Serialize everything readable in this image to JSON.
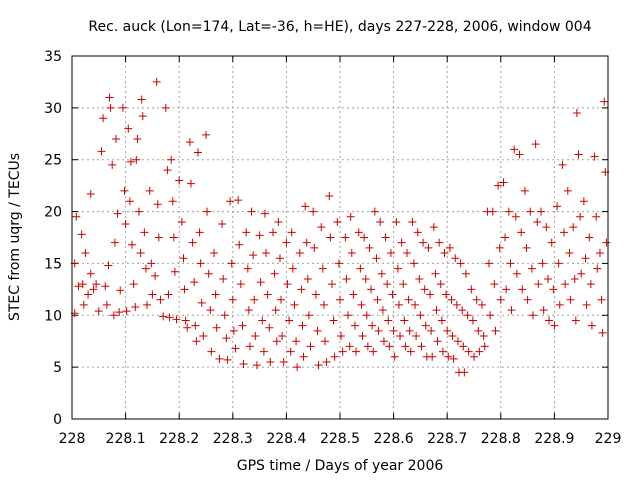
{
  "chart_data": {
    "type": "scatter",
    "title": "Rec. auck (Lon=174, Lat=-36, h=HE), days 227-228, 2006, window 004",
    "xlabel": "GPS time / Days of year 2006",
    "ylabel": "STEC from uqrg / TECUs",
    "xlim": [
      228,
      229
    ],
    "ylim": [
      0,
      35
    ],
    "xticks": [
      "228",
      "228.1",
      "228.2",
      "228.3",
      "228.4",
      "228.5",
      "228.6",
      "228.7",
      "228.8",
      "228.9",
      "229"
    ],
    "yticks": [
      "0",
      "5",
      "10",
      "15",
      "20",
      "25",
      "30",
      "35"
    ],
    "grid": true,
    "marker": "+",
    "color": "#cc0000",
    "points": [
      [
        228.005,
        15.0
      ],
      [
        228.005,
        10.2
      ],
      [
        228.008,
        19.5
      ],
      [
        228.012,
        12.8
      ],
      [
        228.018,
        17.8
      ],
      [
        228.02,
        13.0
      ],
      [
        228.022,
        11.0
      ],
      [
        228.025,
        16.0
      ],
      [
        228.03,
        12.0
      ],
      [
        228.035,
        21.7
      ],
      [
        228.035,
        14.0
      ],
      [
        228.04,
        12.5
      ],
      [
        228.045,
        13.0
      ],
      [
        228.05,
        10.4
      ],
      [
        228.055,
        25.8
      ],
      [
        228.058,
        29.0
      ],
      [
        228.062,
        12.8
      ],
      [
        228.065,
        11.0
      ],
      [
        228.068,
        14.8
      ],
      [
        228.07,
        31.0
      ],
      [
        228.072,
        30.0
      ],
      [
        228.075,
        24.5
      ],
      [
        228.078,
        10.0
      ],
      [
        228.08,
        17.0
      ],
      [
        228.082,
        27.0
      ],
      [
        228.085,
        19.8
      ],
      [
        228.088,
        10.3
      ],
      [
        228.09,
        12.4
      ],
      [
        228.095,
        30.0
      ],
      [
        228.098,
        22.0
      ],
      [
        228.1,
        18.8
      ],
      [
        228.102,
        10.4
      ],
      [
        228.105,
        28.0
      ],
      [
        228.108,
        21.0
      ],
      [
        228.11,
        24.8
      ],
      [
        228.112,
        16.8
      ],
      [
        228.115,
        13.0
      ],
      [
        228.118,
        10.8
      ],
      [
        228.12,
        25.0
      ],
      [
        228.122,
        27.0
      ],
      [
        228.125,
        20.0
      ],
      [
        228.128,
        16.0
      ],
      [
        228.13,
        30.8
      ],
      [
        228.132,
        29.2
      ],
      [
        228.135,
        18.0
      ],
      [
        228.138,
        14.5
      ],
      [
        228.14,
        11.0
      ],
      [
        228.145,
        22.0
      ],
      [
        228.148,
        15.0
      ],
      [
        228.15,
        12.0
      ],
      [
        228.155,
        13.8
      ],
      [
        228.158,
        32.5
      ],
      [
        228.16,
        20.7
      ],
      [
        228.162,
        17.5
      ],
      [
        228.165,
        11.5
      ],
      [
        228.17,
        9.9
      ],
      [
        228.175,
        30.0
      ],
      [
        228.178,
        24.0
      ],
      [
        228.18,
        12.0
      ],
      [
        228.182,
        9.8
      ],
      [
        228.185,
        25.0
      ],
      [
        228.188,
        21.0
      ],
      [
        228.19,
        17.5
      ],
      [
        228.192,
        14.2
      ],
      [
        228.195,
        9.6
      ],
      [
        228.2,
        23.0
      ],
      [
        228.205,
        19.0
      ],
      [
        228.208,
        15.5
      ],
      [
        228.21,
        12.5
      ],
      [
        228.212,
        9.5
      ],
      [
        228.215,
        8.8
      ],
      [
        228.22,
        26.7
      ],
      [
        228.222,
        22.7
      ],
      [
        228.225,
        17.0
      ],
      [
        228.228,
        13.2
      ],
      [
        228.23,
        9.0
      ],
      [
        228.232,
        7.5
      ],
      [
        228.235,
        25.7
      ],
      [
        228.238,
        18.0
      ],
      [
        228.24,
        15.0
      ],
      [
        228.242,
        11.2
      ],
      [
        228.245,
        8.0
      ],
      [
        228.25,
        27.4
      ],
      [
        228.252,
        20.0
      ],
      [
        228.255,
        14.0
      ],
      [
        228.258,
        10.5
      ],
      [
        228.26,
        6.5
      ],
      [
        228.265,
        16.0
      ],
      [
        228.268,
        12.0
      ],
      [
        228.27,
        8.8
      ],
      [
        228.275,
        5.8
      ],
      [
        228.28,
        18.8
      ],
      [
        228.282,
        13.5
      ],
      [
        228.285,
        10.0
      ],
      [
        228.288,
        7.8
      ],
      [
        228.29,
        5.7
      ],
      [
        228.295,
        21.0
      ],
      [
        228.298,
        15.0
      ],
      [
        228.3,
        11.5
      ],
      [
        228.302,
        8.5
      ],
      [
        228.305,
        6.8
      ],
      [
        228.31,
        21.1
      ],
      [
        228.312,
        16.8
      ],
      [
        228.315,
        13.0
      ],
      [
        228.318,
        9.0
      ],
      [
        228.32,
        5.3
      ],
      [
        228.325,
        18.0
      ],
      [
        228.328,
        14.5
      ],
      [
        228.33,
        10.5
      ],
      [
        228.332,
        7.0
      ],
      [
        228.335,
        20.0
      ],
      [
        228.338,
        15.8
      ],
      [
        228.34,
        11.5
      ],
      [
        228.342,
        8.0
      ],
      [
        228.345,
        5.2
      ],
      [
        228.35,
        17.7
      ],
      [
        228.352,
        13.2
      ],
      [
        228.355,
        9.5
      ],
      [
        228.358,
        6.5
      ],
      [
        228.36,
        19.8
      ],
      [
        228.362,
        16.0
      ],
      [
        228.365,
        12.0
      ],
      [
        228.368,
        8.8
      ],
      [
        228.37,
        5.5
      ],
      [
        228.375,
        18.0
      ],
      [
        228.378,
        14.0
      ],
      [
        228.38,
        10.5
      ],
      [
        228.382,
        7.5
      ],
      [
        228.385,
        19.0
      ],
      [
        228.388,
        15.5
      ],
      [
        228.39,
        11.5
      ],
      [
        228.392,
        8.0
      ],
      [
        228.395,
        5.5
      ],
      [
        228.4,
        17.0
      ],
      [
        228.402,
        13.0
      ],
      [
        228.405,
        9.5
      ],
      [
        228.408,
        6.5
      ],
      [
        228.41,
        18.0
      ],
      [
        228.412,
        14.5
      ],
      [
        228.415,
        11.0
      ],
      [
        228.418,
        7.5
      ],
      [
        228.42,
        5.0
      ],
      [
        228.425,
        16.0
      ],
      [
        228.428,
        12.5
      ],
      [
        228.43,
        9.0
      ],
      [
        228.432,
        6.0
      ],
      [
        228.435,
        20.5
      ],
      [
        228.438,
        17.0
      ],
      [
        228.44,
        13.5
      ],
      [
        228.442,
        10.0
      ],
      [
        228.445,
        7.0
      ],
      [
        228.45,
        20.0
      ],
      [
        228.452,
        16.5
      ],
      [
        228.455,
        12.0
      ],
      [
        228.458,
        8.5
      ],
      [
        228.46,
        5.2
      ],
      [
        228.465,
        18.5
      ],
      [
        228.468,
        14.5
      ],
      [
        228.47,
        11.0
      ],
      [
        228.472,
        7.5
      ],
      [
        228.475,
        5.5
      ],
      [
        228.48,
        21.5
      ],
      [
        228.482,
        17.5
      ],
      [
        228.485,
        13.0
      ],
      [
        228.488,
        9.5
      ],
      [
        228.49,
        6.0
      ],
      [
        228.495,
        19.0
      ],
      [
        228.498,
        15.0
      ],
      [
        228.5,
        11.5
      ],
      [
        228.502,
        8.0
      ],
      [
        228.505,
        6.5
      ],
      [
        228.51,
        17.5
      ],
      [
        228.512,
        13.5
      ],
      [
        228.515,
        10.0
      ],
      [
        228.518,
        7.0
      ],
      [
        228.52,
        19.5
      ],
      [
        228.522,
        16.0
      ],
      [
        228.525,
        12.0
      ],
      [
        228.528,
        9.0
      ],
      [
        228.53,
        6.5
      ],
      [
        228.535,
        18.0
      ],
      [
        228.538,
        14.5
      ],
      [
        228.54,
        11.0
      ],
      [
        228.542,
        8.0
      ],
      [
        228.545,
        17.5
      ],
      [
        228.548,
        13.5
      ],
      [
        228.55,
        10.0
      ],
      [
        228.552,
        7.0
      ],
      [
        228.555,
        16.5
      ],
      [
        228.558,
        12.5
      ],
      [
        228.56,
        9.0
      ],
      [
        228.562,
        6.5
      ],
      [
        228.565,
        20.0
      ],
      [
        228.568,
        15.5
      ],
      [
        228.57,
        11.5
      ],
      [
        228.572,
        8.5
      ],
      [
        228.575,
        19.0
      ],
      [
        228.578,
        14.0
      ],
      [
        228.58,
        10.5
      ],
      [
        228.582,
        7.5
      ],
      [
        228.585,
        17.5
      ],
      [
        228.588,
        13.0
      ],
      [
        228.59,
        9.5
      ],
      [
        228.592,
        7.0
      ],
      [
        228.595,
        16.0
      ],
      [
        228.598,
        12.0
      ],
      [
        228.6,
        8.5
      ],
      [
        228.602,
        6.0
      ],
      [
        228.605,
        19.0
      ],
      [
        228.608,
        14.5
      ],
      [
        228.61,
        11.0
      ],
      [
        228.612,
        8.0
      ],
      [
        228.615,
        17.0
      ],
      [
        228.618,
        13.0
      ],
      [
        228.62,
        9.5
      ],
      [
        228.622,
        7.0
      ],
      [
        228.625,
        16.0
      ],
      [
        228.628,
        11.5
      ],
      [
        228.63,
        8.5
      ],
      [
        228.632,
        6.5
      ],
      [
        228.635,
        19.0
      ],
      [
        228.638,
        15.0
      ],
      [
        228.64,
        11.0
      ],
      [
        228.642,
        8.0
      ],
      [
        228.645,
        18.0
      ],
      [
        228.648,
        13.5
      ],
      [
        228.65,
        10.0
      ],
      [
        228.652,
        7.0
      ],
      [
        228.655,
        17.0
      ],
      [
        228.658,
        12.5
      ],
      [
        228.66,
        9.0
      ],
      [
        228.662,
        6.0
      ],
      [
        228.665,
        16.5
      ],
      [
        228.668,
        12.0
      ],
      [
        228.67,
        8.5
      ],
      [
        228.672,
        6.0
      ],
      [
        228.675,
        18.5
      ],
      [
        228.678,
        14.0
      ],
      [
        228.68,
        10.5
      ],
      [
        228.682,
        7.5
      ],
      [
        228.685,
        17.0
      ],
      [
        228.688,
        13.0
      ],
      [
        228.69,
        9.5
      ],
      [
        228.692,
        6.5
      ],
      [
        228.695,
        16.0
      ],
      [
        228.698,
        12.0
      ],
      [
        228.7,
        8.5
      ],
      [
        228.702,
        6.0
      ],
      [
        228.705,
        16.5
      ],
      [
        228.708,
        11.5
      ],
      [
        228.71,
        8.0
      ],
      [
        228.712,
        5.8
      ],
      [
        228.715,
        15.5
      ],
      [
        228.718,
        11.0
      ],
      [
        228.72,
        7.5
      ],
      [
        228.722,
        4.5
      ],
      [
        228.725,
        15.0
      ],
      [
        228.728,
        10.5
      ],
      [
        228.73,
        7.0
      ],
      [
        228.732,
        4.5
      ],
      [
        228.735,
        14.0
      ],
      [
        228.738,
        10.0
      ],
      [
        228.74,
        6.5
      ],
      [
        228.745,
        12.5
      ],
      [
        228.748,
        9.5
      ],
      [
        228.75,
        6.0
      ],
      [
        228.755,
        11.5
      ],
      [
        228.758,
        8.5
      ],
      [
        228.76,
        6.5
      ],
      [
        228.765,
        11.0
      ],
      [
        228.768,
        8.0
      ],
      [
        228.77,
        7.0
      ],
      [
        228.775,
        20.0
      ],
      [
        228.778,
        15.0
      ],
      [
        228.78,
        10.0
      ],
      [
        228.785,
        20.0
      ],
      [
        228.788,
        13.0
      ],
      [
        228.79,
        8.5
      ],
      [
        228.795,
        22.5
      ],
      [
        228.798,
        16.5
      ],
      [
        228.8,
        11.5
      ],
      [
        228.805,
        22.8
      ],
      [
        228.808,
        17.5
      ],
      [
        228.81,
        12.5
      ],
      [
        228.815,
        20.0
      ],
      [
        228.818,
        15.0
      ],
      [
        228.82,
        10.5
      ],
      [
        228.825,
        26.0
      ],
      [
        228.828,
        19.5
      ],
      [
        228.83,
        14.0
      ],
      [
        228.835,
        25.5
      ],
      [
        228.838,
        18.0
      ],
      [
        228.84,
        12.5
      ],
      [
        228.845,
        22.0
      ],
      [
        228.848,
        16.5
      ],
      [
        228.85,
        11.5
      ],
      [
        228.855,
        20.0
      ],
      [
        228.858,
        14.5
      ],
      [
        228.86,
        10.0
      ],
      [
        228.865,
        26.5
      ],
      [
        228.868,
        19.0
      ],
      [
        228.87,
        13.0
      ],
      [
        228.875,
        20.0
      ],
      [
        228.878,
        15.0
      ],
      [
        228.88,
        10.5
      ],
      [
        228.885,
        18.5
      ],
      [
        228.888,
        13.5
      ],
      [
        228.89,
        9.5
      ],
      [
        228.895,
        17.0
      ],
      [
        228.898,
        12.5
      ],
      [
        228.9,
        9.0
      ],
      [
        228.905,
        20.5
      ],
      [
        228.908,
        15.0
      ],
      [
        228.91,
        11.0
      ],
      [
        228.915,
        24.5
      ],
      [
        228.918,
        18.0
      ],
      [
        228.92,
        13.0
      ],
      [
        228.925,
        22.0
      ],
      [
        228.928,
        16.0
      ],
      [
        228.93,
        11.5
      ],
      [
        228.935,
        18.5
      ],
      [
        228.938,
        13.5
      ],
      [
        228.94,
        9.5
      ],
      [
        228.942,
        29.5
      ],
      [
        228.945,
        25.5
      ],
      [
        228.948,
        19.5
      ],
      [
        228.95,
        14.0
      ],
      [
        228.955,
        21.0
      ],
      [
        228.958,
        15.5
      ],
      [
        228.96,
        11.0
      ],
      [
        228.965,
        17.5
      ],
      [
        228.968,
        13.0
      ],
      [
        228.97,
        9.0
      ],
      [
        228.975,
        25.3
      ],
      [
        228.978,
        19.5
      ],
      [
        228.98,
        14.5
      ],
      [
        228.985,
        16.0
      ],
      [
        228.988,
        11.5
      ],
      [
        228.99,
        8.3
      ],
      [
        228.993,
        30.6
      ],
      [
        228.995,
        23.8
      ],
      [
        228.997,
        17.0
      ]
    ]
  }
}
